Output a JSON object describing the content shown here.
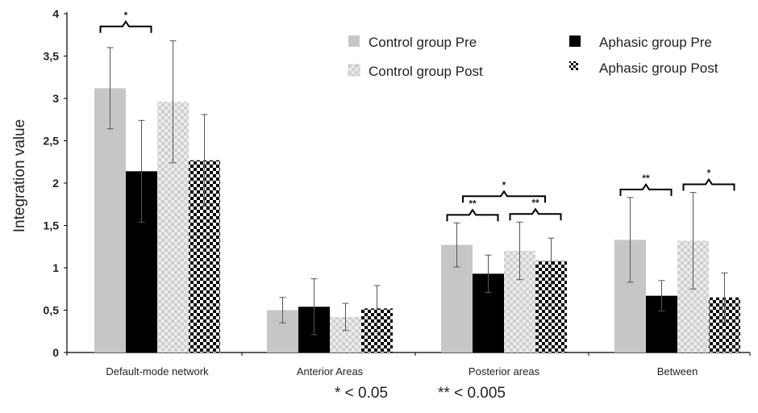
{
  "chart_data": {
    "type": "bar",
    "title": "",
    "xlabel": "",
    "ylabel": "Integration value",
    "ylim": [
      0,
      4
    ],
    "yticks": [
      "0",
      "0,5",
      "1",
      "1,5",
      "2",
      "2,5",
      "3",
      "3,5",
      "4"
    ],
    "categories": [
      "Default-mode network",
      "Anterior Areas",
      "Posterior areas",
      "Between"
    ],
    "series": [
      {
        "name": "Control group Pre",
        "pattern": "solid-gray",
        "color": "#c8c8c8",
        "values": [
          3.12,
          0.5,
          1.27,
          1.33
        ],
        "error": [
          0.48,
          0.15,
          0.26,
          0.5
        ]
      },
      {
        "name": "Aphasic group Pre",
        "pattern": "solid-black",
        "color": "#000000",
        "values": [
          2.14,
          0.54,
          0.93,
          0.67
        ],
        "error": [
          0.6,
          0.33,
          0.22,
          0.18
        ]
      },
      {
        "name": "Control group Post",
        "pattern": "light-check",
        "color": "#d9d9d9",
        "values": [
          2.96,
          0.42,
          1.2,
          1.32
        ],
        "error": [
          0.72,
          0.16,
          0.34,
          0.57
        ]
      },
      {
        "name": "Aphasic group Post",
        "pattern": "dark-check",
        "color": "#000000",
        "values": [
          2.27,
          0.52,
          1.08,
          0.65
        ],
        "error": [
          0.54,
          0.27,
          0.27,
          0.29
        ]
      }
    ],
    "significance": [
      {
        "category": 0,
        "from_series": 0,
        "to_series": 1,
        "label": "*"
      },
      {
        "category": 2,
        "from_series": 0,
        "to_series": 1,
        "label": "**"
      },
      {
        "category": 2,
        "from_series": 2,
        "to_series": 3,
        "label": "**"
      },
      {
        "category": 2,
        "from_series": "0-1",
        "to_series": "2-3",
        "label": "*"
      },
      {
        "category": 3,
        "from_series": 0,
        "to_series": 1,
        "label": "**"
      },
      {
        "category": 3,
        "from_series": 2,
        "to_series": 3,
        "label": "*"
      }
    ],
    "footnote": [
      "* < 0.05",
      "** < 0.005"
    ],
    "legend_position": "top-right",
    "grid": false
  }
}
